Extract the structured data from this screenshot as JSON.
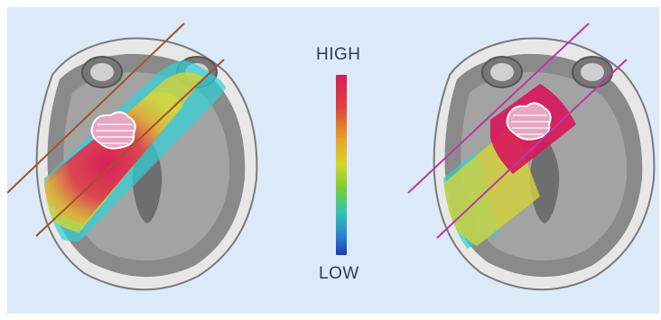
{
  "colorbar": {
    "high_label": "HIGH",
    "low_label": "LOW",
    "gradient": [
      "#d61a5c",
      "#e2403e",
      "#e5a623",
      "#d6d52a",
      "#7ecf2e",
      "#2fc6b0",
      "#2a7fd8",
      "#1e3ca8"
    ]
  },
  "colors": {
    "background": "#dce9f8",
    "left_beam_lines": "#a0522d",
    "right_beam_lines": "#b83aa4",
    "skull": "#e7e7e7",
    "brain_outer": "#8a8a8a",
    "brain_inner": "#a6a6a6",
    "ventricle": "#6f6f6f"
  }
}
